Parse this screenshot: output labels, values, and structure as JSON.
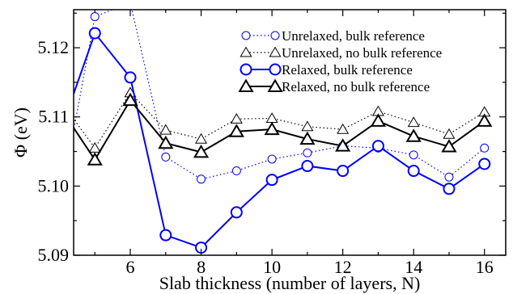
{
  "chart_data": {
    "type": "line",
    "xlabel": "Slab thickness (number of layers, N)",
    "ylabel": "Φ (eV)",
    "xlim": [
      4.4,
      16.6
    ],
    "ylim": [
      5.09,
      5.1255
    ],
    "x_ticks": [
      6,
      8,
      10,
      12,
      14,
      16
    ],
    "x_tick_labels": [
      "6",
      "8",
      "10",
      "12",
      "14",
      "16"
    ],
    "y_ticks": [
      5.09,
      5.1,
      5.11,
      5.12
    ],
    "y_tick_labels": [
      "5.09",
      "5.10",
      "5.11",
      "5.12"
    ],
    "grid": false,
    "legend_position": "top-right",
    "x": [
      4,
      5,
      6,
      7,
      8,
      9,
      10,
      11,
      12,
      13,
      14,
      15,
      16
    ],
    "series": [
      {
        "name": "Unrelaxed, bulk reference",
        "color": "#0000ff",
        "line_style": "dotted",
        "marker": "circle",
        "marker_filled": false,
        "values": [
          5.097,
          5.1245,
          5.1265,
          5.1042,
          5.101,
          5.1022,
          5.1039,
          5.1048,
          5.1058,
          5.1055,
          5.1045,
          5.1013,
          5.1055
        ]
      },
      {
        "name": "Unrelaxed, no bulk reference",
        "color": "#000000",
        "line_style": "dotted",
        "marker": "triangle",
        "marker_filled": false,
        "values": [
          5.1125,
          5.1055,
          5.1135,
          5.1081,
          5.1068,
          5.1097,
          5.1098,
          5.1086,
          5.1082,
          5.1108,
          5.1092,
          5.1075,
          5.1107
        ]
      },
      {
        "name": "Relaxed, bulk reference",
        "color": "#0000ff",
        "line_style": "solid",
        "marker": "circle",
        "marker_filled": false,
        "values": [
          5.1075,
          5.1221,
          5.1157,
          5.0929,
          5.0911,
          5.0962,
          5.1009,
          5.1029,
          5.1022,
          5.1058,
          5.1022,
          5.0996,
          5.1032
        ]
      },
      {
        "name": "Relaxed, no bulk reference",
        "color": "#000000",
        "line_style": "solid",
        "marker": "triangle",
        "marker_filled": false,
        "values": [
          5.1115,
          5.1038,
          5.1124,
          5.1062,
          5.1049,
          5.1079,
          5.1082,
          5.1068,
          5.1058,
          5.1094,
          5.1072,
          5.1057,
          5.1094
        ]
      }
    ]
  }
}
